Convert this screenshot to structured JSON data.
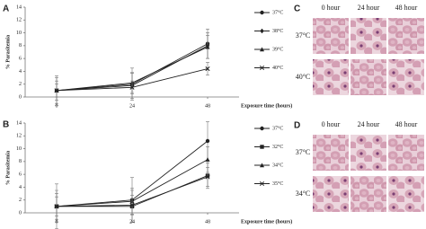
{
  "chart_data": [
    {
      "type": "line",
      "panel_label": "A",
      "y_label": "% Parasitemia",
      "x_label": "Exposure time (hours)",
      "x": [
        0,
        24,
        48
      ],
      "xlim": [
        -10,
        58
      ],
      "xticks": [
        0,
        24,
        48
      ],
      "ylim": [
        0,
        14
      ],
      "yticks": [
        0,
        2,
        4,
        6,
        8,
        10,
        12,
        14
      ],
      "series": [
        {
          "name": "37°C",
          "color": "#222222",
          "marker": "circle",
          "values": [
            1.0,
            2.0,
            8.3
          ],
          "errors": [
            2.3,
            2.5,
            2.3
          ]
        },
        {
          "name": "38°C",
          "color": "#222222",
          "marker": "diamond",
          "values": [
            1.0,
            1.8,
            8.0
          ],
          "errors": [
            2.0,
            2.0,
            2.0
          ]
        },
        {
          "name": "39°C",
          "color": "#222222",
          "marker": "triangle",
          "values": [
            1.0,
            2.2,
            7.8
          ],
          "errors": [
            1.5,
            1.5,
            1.8
          ]
        },
        {
          "name": "40°C",
          "color": "#222222",
          "marker": "cross",
          "values": [
            1.0,
            1.5,
            4.4
          ],
          "errors": [
            1.0,
            1.0,
            1.0
          ]
        }
      ]
    },
    {
      "type": "line",
      "panel_label": "B",
      "y_label": "% Parasitemia",
      "x_label": "Exposure time (hours)",
      "x": [
        0,
        24,
        48
      ],
      "xlim": [
        -10,
        58
      ],
      "xticks": [
        0,
        24,
        48
      ],
      "ylim": [
        0,
        14
      ],
      "yticks": [
        0,
        2,
        4,
        6,
        8,
        10,
        12,
        14
      ],
      "series": [
        {
          "name": "37°C",
          "color": "#222222",
          "marker": "circle",
          "values": [
            1.0,
            2.0,
            11.2
          ],
          "errors": [
            3.5,
            3.5,
            3.0
          ]
        },
        {
          "name": "32°C",
          "color": "#222222",
          "marker": "square",
          "values": [
            1.0,
            1.0,
            5.8
          ],
          "errors": [
            2.5,
            2.5,
            2.0
          ]
        },
        {
          "name": "34°C",
          "color": "#222222",
          "marker": "triangle",
          "values": [
            1.0,
            1.8,
            8.3
          ],
          "errors": [
            2.0,
            2.0,
            2.0
          ]
        },
        {
          "name": "35°C",
          "color": "#222222",
          "marker": "cross",
          "values": [
            1.0,
            1.2,
            5.6
          ],
          "errors": [
            1.5,
            1.5,
            1.5
          ]
        }
      ]
    }
  ],
  "image_panels": [
    {
      "label": "C",
      "columns": [
        "0 hour",
        "24 hour",
        "48 hour"
      ],
      "rows": [
        "37°C",
        "40°C"
      ]
    },
    {
      "label": "D",
      "columns": [
        "0 hour",
        "24 hour",
        "48 hour"
      ],
      "rows": [
        "37°C",
        "34°C"
      ]
    }
  ]
}
